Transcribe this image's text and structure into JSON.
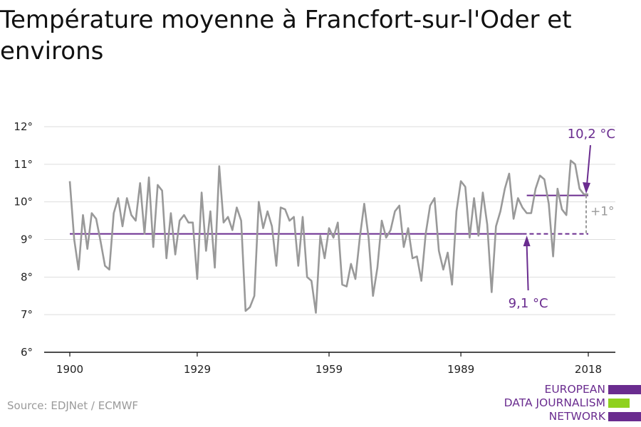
{
  "title": "Température moyenne à Francfort-sur-l'Oder et environs",
  "source": "Source: EDJNet / ECMWF",
  "logo": {
    "lines": [
      "EUROPEAN",
      "DATA JOURNALISM",
      "NETWORK"
    ],
    "bar_colors": [
      "#6a2c8f",
      "#8fd11f",
      "#6a2c8f"
    ]
  },
  "colors": {
    "line": "#999999",
    "accent": "#6a2c8f",
    "grid": "#dddddd",
    "diff": "#999999"
  },
  "annotations": {
    "recent": "10,2 °C",
    "baseline": "9,1 °C",
    "diff": "+1°"
  },
  "chart_data": {
    "type": "line",
    "title": "Température moyenne à Francfort-sur-l'Oder et environs",
    "xlabel": "",
    "ylabel": "",
    "xlim": [
      1900,
      2018
    ],
    "ylim": [
      6,
      12
    ],
    "x_ticks": [
      1900,
      1929,
      1959,
      1989,
      2018
    ],
    "x_tick_labels": [
      "1900",
      "1929",
      "1959",
      "1989",
      "2018"
    ],
    "y_ticks": [
      6,
      7,
      8,
      9,
      10,
      11,
      12
    ],
    "y_tick_labels": [
      "6°",
      "7°",
      "8°",
      "9°",
      "10°",
      "11°",
      "12°"
    ],
    "grid": true,
    "series": [
      {
        "years": [
          1900,
          1901,
          1902,
          1903,
          1904,
          1905,
          1906,
          1907,
          1908,
          1909,
          1910,
          1911,
          1912,
          1913,
          1914,
          1915,
          1916,
          1917,
          1918,
          1919,
          1920,
          1921,
          1922,
          1923,
          1924,
          1925,
          1926,
          1927,
          1928,
          1929,
          1930,
          1931,
          1932,
          1933,
          1934,
          1935,
          1936,
          1937,
          1938,
          1939,
          1940,
          1941,
          1942,
          1943,
          1944,
          1945,
          1946,
          1947,
          1948,
          1949,
          1950,
          1951,
          1952,
          1953,
          1954,
          1955,
          1956,
          1957,
          1958,
          1959,
          1960,
          1961,
          1962,
          1963,
          1964,
          1965,
          1966,
          1967,
          1968,
          1969,
          1970,
          1971,
          1972,
          1973,
          1974,
          1975,
          1976,
          1977,
          1978,
          1979,
          1980,
          1981,
          1982,
          1983,
          1984,
          1985,
          1986,
          1987,
          1988,
          1989,
          1990,
          1991,
          1992,
          1993,
          1994,
          1995,
          1996,
          1997,
          1998,
          1999,
          2000,
          2001,
          2002,
          2003,
          2004,
          2005,
          2006,
          2007,
          2008,
          2009,
          2010,
          2011,
          2012,
          2013,
          2014,
          2015,
          2016,
          2017,
          2018
        ],
        "values": [
          10.55,
          9.0,
          8.2,
          9.65,
          8.75,
          9.7,
          9.55,
          8.95,
          8.3,
          8.2,
          9.7,
          10.1,
          9.35,
          10.1,
          9.65,
          9.5,
          10.5,
          9.15,
          10.65,
          8.8,
          10.45,
          10.3,
          8.5,
          9.7,
          8.6,
          9.5,
          9.65,
          9.45,
          9.45,
          7.95,
          10.25,
          8.7,
          9.75,
          8.25,
          10.95,
          9.45,
          9.6,
          9.25,
          9.85,
          9.5,
          7.1,
          7.2,
          7.5,
          10.0,
          9.3,
          9.75,
          9.35,
          8.3,
          9.85,
          9.8,
          9.5,
          9.6,
          8.3,
          9.6,
          8.0,
          7.9,
          7.05,
          9.1,
          8.5,
          9.3,
          9.05,
          9.45,
          7.8,
          7.75,
          8.35,
          7.95,
          9.05,
          9.95,
          9.05,
          7.5,
          8.25,
          9.5,
          9.05,
          9.25,
          9.75,
          9.9,
          8.8,
          9.3,
          8.5,
          8.55,
          7.9,
          9.15,
          9.9,
          10.1,
          8.7,
          8.2,
          8.65,
          7.8,
          9.75,
          10.55,
          10.4,
          9.05,
          10.1,
          9.1,
          10.25,
          9.4,
          7.6,
          9.35,
          9.75,
          10.35,
          10.75,
          9.55,
          10.1,
          9.85,
          9.7,
          9.7,
          10.35,
          10.7,
          10.6,
          9.95,
          8.55,
          10.35,
          9.8,
          9.65,
          11.1,
          11.0,
          10.35,
          10.2,
          10.2
        ]
      }
    ],
    "baseline": {
      "value": 9.15,
      "from": 1900,
      "solid_to": 2003,
      "to": 2018,
      "label": "9,1 °C"
    },
    "recent_mean": {
      "value": 10.17,
      "from": 2004,
      "to": 2018,
      "label": "10,2 °C"
    }
  }
}
